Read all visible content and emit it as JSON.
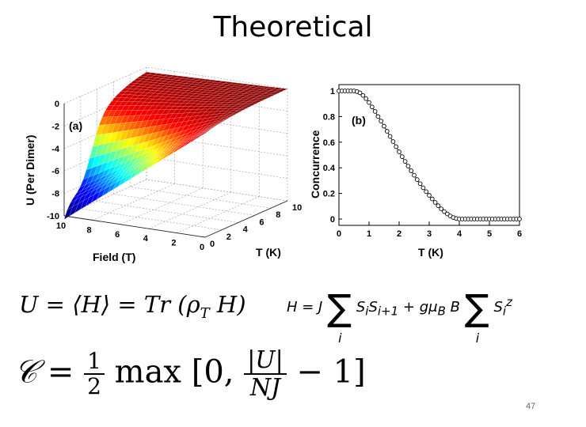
{
  "slide": {
    "title": "Theoretical",
    "page_number": "47"
  },
  "equations": {
    "energy": {
      "lhs": "U",
      "mid": "⟨H⟩",
      "rhs": "Tr (ρ",
      "sub": "T",
      "end": "H)"
    },
    "hamiltonian": {
      "lhs": "H = J",
      "term1": "S",
      "i1": "i",
      "term2": "S",
      "i2": "i+1",
      "plus": "+ gμ",
      "sub_b": "B",
      "b": "B",
      "term3": "S",
      "i3": "i",
      "z": "z",
      "sum_limit": "i"
    },
    "concurrence": {
      "lhs": "𝒞 = ",
      "half_num": "1",
      "half_den": "2",
      "max": "max [0,",
      "frac_num": "|U|",
      "frac_den": "NJ",
      "end": "− 1]"
    }
  },
  "chart_data": [
    {
      "panel": "(a)",
      "type": "surface",
      "zlabel": "U (Per Dimer)",
      "xlabel": "Field (T)",
      "ylabel": "T (K)",
      "field_ticks": [
        "10",
        "8",
        "6",
        "4",
        "2",
        "0"
      ],
      "temp_ticks": [
        "0",
        "2",
        "4",
        "6",
        "8",
        "10"
      ],
      "u_ticks": [
        "0",
        "-2",
        "-4",
        "-6",
        "-8",
        "-10"
      ],
      "field_range": [
        0,
        10
      ],
      "temp_range": [
        0,
        10
      ],
      "u_range": [
        -10,
        0
      ],
      "colormap": [
        "#00007f",
        "#0000ff",
        "#00ffff",
        "#ffff00",
        "#ff0000",
        "#7f0000"
      ]
    },
    {
      "panel": "(b)",
      "type": "line",
      "xlabel": "T (K)",
      "ylabel": "Concurrence",
      "xlim": [
        0,
        6
      ],
      "ylim": [
        0,
        1
      ],
      "x_ticks": [
        "0",
        "1",
        "2",
        "3",
        "4",
        "5",
        "6"
      ],
      "y_ticks": [
        "0",
        "0.2",
        "0.4",
        "0.6",
        "0.8",
        "1"
      ],
      "series": [
        {
          "marker": "open-circle",
          "x": [
            0.0,
            0.1,
            0.2,
            0.3,
            0.4,
            0.5,
            0.6,
            0.7,
            0.8,
            0.9,
            1.0,
            1.1,
            1.2,
            1.3,
            1.4,
            1.5,
            1.6,
            1.7,
            1.8,
            1.9,
            2.0,
            2.1,
            2.2,
            2.3,
            2.4,
            2.5,
            2.6,
            2.7,
            2.8,
            2.9,
            3.0,
            3.1,
            3.2,
            3.3,
            3.4,
            3.5,
            3.6,
            3.7,
            3.8,
            3.9,
            4.0,
            4.1,
            4.2,
            4.3,
            4.4,
            4.5,
            4.6,
            4.7,
            4.8,
            4.9,
            5.0,
            5.1,
            5.2,
            5.3,
            5.4,
            5.5,
            5.6,
            5.7,
            5.8,
            5.9,
            6.0
          ],
          "y": [
            1.0,
            1.0,
            1.0,
            1.0,
            1.0,
            1.0,
            0.995,
            0.985,
            0.965,
            0.94,
            0.91,
            0.875,
            0.84,
            0.8,
            0.765,
            0.725,
            0.685,
            0.645,
            0.605,
            0.565,
            0.525,
            0.487,
            0.45,
            0.413,
            0.377,
            0.342,
            0.308,
            0.276,
            0.244,
            0.214,
            0.185,
            0.157,
            0.13,
            0.104,
            0.08,
            0.058,
            0.04,
            0.024,
            0.012,
            0.004,
            0.0,
            0.0,
            0.0,
            0.0,
            0.0,
            0.0,
            0.0,
            0.0,
            0.0,
            0.0,
            0.0,
            0.0,
            0.0,
            0.0,
            0.0,
            0.0,
            0.0,
            0.0,
            0.0,
            0.0,
            0.0
          ]
        }
      ]
    }
  ]
}
